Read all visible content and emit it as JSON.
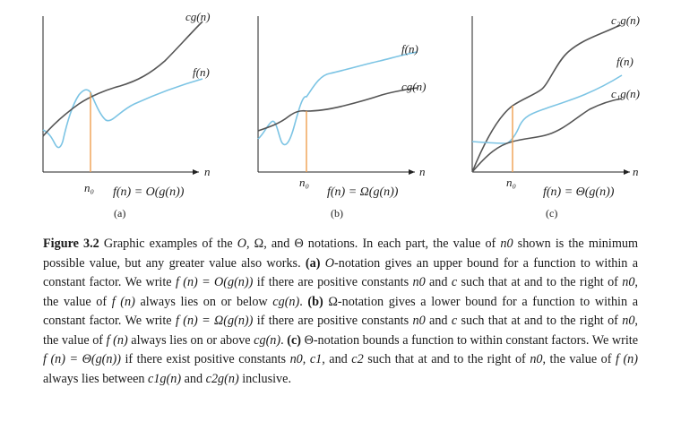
{
  "panels": [
    {
      "id": "a",
      "upper_label": "cg(n)",
      "f_label": "f(n)",
      "axis_n": "n",
      "n0": "n₀",
      "equation": "f(n) = O(g(n))",
      "tag": "(a)"
    },
    {
      "id": "b",
      "f_label": "f(n)",
      "lower_label": "cg(n)",
      "axis_n": "n",
      "n0": "n₀",
      "equation": "f(n) = Ω(g(n))",
      "tag": "(b)"
    },
    {
      "id": "c",
      "upper_label": "c₂g(n)",
      "f_label": "f(n)",
      "lower_label": "c₁g(n)",
      "axis_n": "n",
      "n0": "n₀",
      "equation": "f(n) = Θ(g(n))",
      "tag": "(c)"
    }
  ],
  "colors": {
    "f_curve": "#7cc4e4",
    "g_curve": "#555555",
    "n0_line": "#f0a050",
    "axis": "#222222"
  },
  "caption": {
    "figure_number": "Figure 3.2",
    "t1": " Graphic examples of the ",
    "o": "O",
    "comma1": ", ",
    "omega": "Ω",
    "comma2": ", and ",
    "theta": "Θ",
    "t2": " notations. In each part, the value of ",
    "n0": "n0",
    "t3": " shown is the minimum possible value, but any greater value also works. ",
    "a_tag": "(a)",
    "a_text1": " ",
    "a_o": "O",
    "a_text2": "-notation gives an upper bound for a function to within a constant factor. We write ",
    "a_eq": "f (n) = O(g(n))",
    "a_text3": " if there are positive constants ",
    "a_n0": "n0",
    "a_text4": " and ",
    "a_c": "c",
    "a_text5": " such that at and to the right of ",
    "a_n0b": "n0",
    "a_text6": ", the value of ",
    "a_fn": "f (n)",
    "a_text7": " always lies on or below ",
    "a_cg": "cg(n)",
    "a_text8": ". ",
    "b_tag": "(b)",
    "b_text1": " Ω-notation gives a lower bound for a function to within a constant factor. We write ",
    "b_eq": "f (n) = Ω(g(n))",
    "b_text2": " if there are positive constants ",
    "b_n0": "n0",
    "b_text3": " and ",
    "b_c": "c",
    "b_text4": " such that at and to the right of ",
    "b_n0b": "n0",
    "b_text5": ", the value of ",
    "b_fn": "f (n)",
    "b_text6": " always lies on or above ",
    "b_cg": "cg(n)",
    "b_text7": ". ",
    "c_tag": "(c)",
    "c_text1": " Θ-notation bounds a function to within constant factors. We write ",
    "c_eq": "f (n) = Θ(g(n))",
    "c_text2": " if there exist positive constants ",
    "c_n0": "n0",
    "c_text3": ", ",
    "c_c1": "c1",
    "c_text4": ", and ",
    "c_c2": "c2",
    "c_text5": " such that at and to the right of ",
    "c_n0b": "n0",
    "c_text6": ", the value of ",
    "c_fn": "f (n)",
    "c_text7": " always lies between ",
    "c_c1g": "c1g(n)",
    "c_text8": " and ",
    "c_c2g": "c2g(n)",
    "c_text9": " inclusive."
  }
}
